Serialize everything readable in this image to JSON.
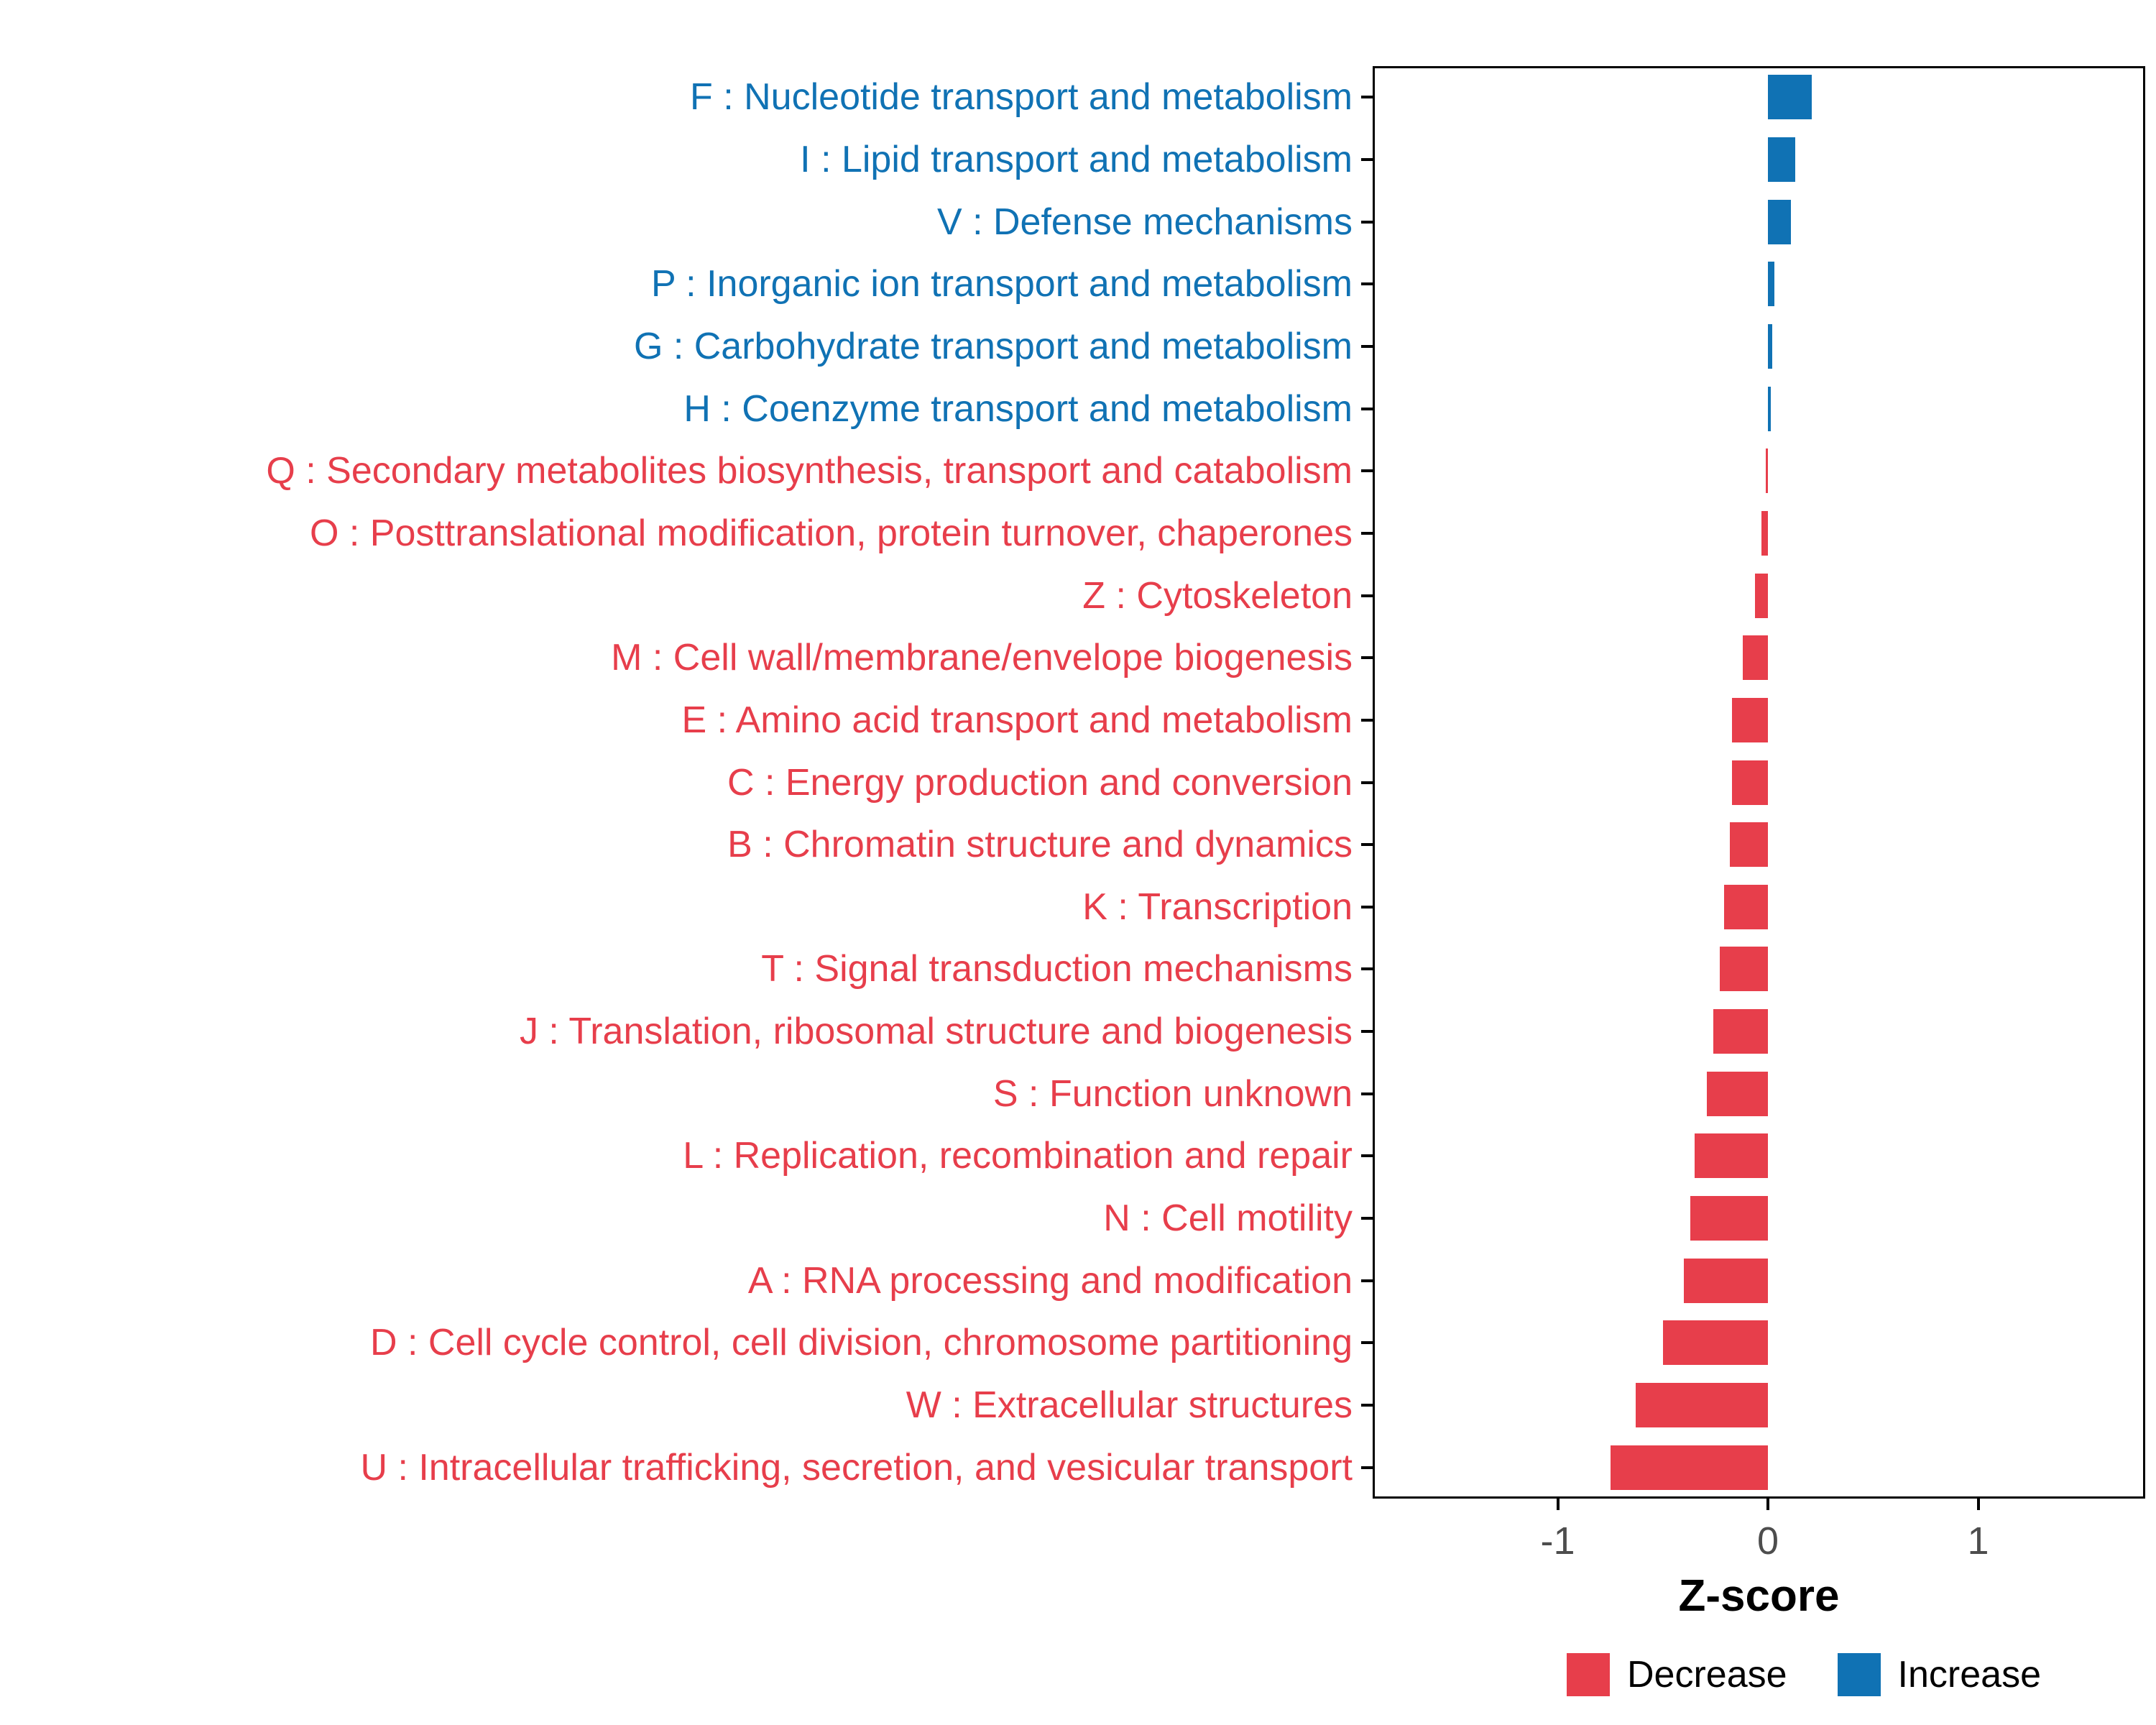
{
  "figure": {
    "background": "#ffffff"
  },
  "colors": {
    "decrease": "#E73E4B",
    "increase": "#1072B4",
    "tick_label": "#4d4d4d",
    "axis_line": "#000000"
  },
  "axis": {
    "x_title": "Z-score",
    "x_tick_labels": [
      "-1",
      "0",
      "1"
    ],
    "x_tick_values": [
      -1,
      0,
      1
    ]
  },
  "legend": {
    "items": [
      {
        "label": "Decrease",
        "color": "#E73E4B"
      },
      {
        "label": "Increase",
        "color": "#1072B4"
      }
    ]
  },
  "chart_data": {
    "type": "bar",
    "orientation": "horizontal",
    "title": "",
    "xlabel": "Z-score",
    "ylabel": "",
    "xlim": [
      -1.9,
      1.8
    ],
    "grid": false,
    "legend_position": "bottom-right",
    "legend_entries": [
      "Decrease",
      "Increase"
    ],
    "categories": [
      "F : Nucleotide transport and metabolism",
      "I : Lipid transport and metabolism",
      "V : Defense mechanisms",
      "P : Inorganic ion transport and metabolism",
      "G : Carbohydrate transport and metabolism",
      "H : Coenzyme transport and metabolism",
      "Q : Secondary metabolites biosynthesis, transport and catabolism",
      "O : Posttranslational modification, protein turnover, chaperones",
      "Z : Cytoskeleton",
      "M : Cell wall/membrane/envelope biogenesis",
      "E : Amino acid transport and metabolism",
      "C : Energy production and conversion",
      "B : Chromatin structure and dynamics",
      "K : Transcription",
      "T : Signal transduction mechanisms",
      "J : Translation, ribosomal structure and biogenesis",
      "S : Function unknown",
      "L : Replication, recombination and repair",
      "N : Cell motility",
      "A : RNA processing and modification",
      "D : Cell cycle control, cell division, chromosome partitioning",
      "W : Extracellular structures",
      "U : Intracellular trafficking, secretion, and vesicular transport"
    ],
    "values": [
      0.21,
      0.13,
      0.11,
      0.03,
      0.02,
      0.015,
      -0.01,
      -0.03,
      -0.06,
      -0.12,
      -0.17,
      -0.17,
      -0.18,
      -0.21,
      -0.23,
      -0.26,
      -0.29,
      -0.35,
      -0.37,
      -0.4,
      -0.5,
      -0.63,
      -0.75
    ],
    "groups": [
      "increase",
      "increase",
      "increase",
      "increase",
      "increase",
      "increase",
      "decrease",
      "decrease",
      "decrease",
      "decrease",
      "decrease",
      "decrease",
      "decrease",
      "decrease",
      "decrease",
      "decrease",
      "decrease",
      "decrease",
      "decrease",
      "decrease",
      "decrease",
      "decrease",
      "decrease"
    ]
  }
}
